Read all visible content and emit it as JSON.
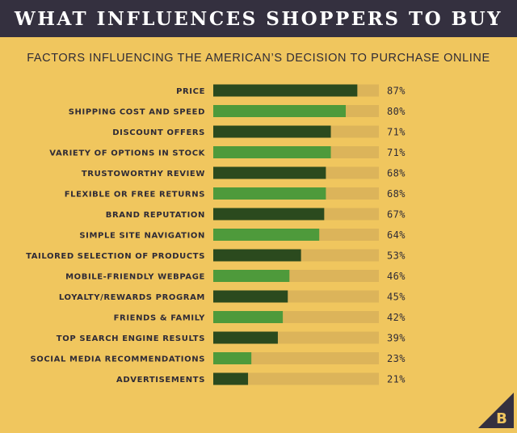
{
  "header": {
    "title": "WHAT INFLUENCES SHOPPERS TO BUY"
  },
  "subtitle": "FACTORS INFLUENCING THE AMERICAN’S DECISION TO PURCHASE ONLINE",
  "colors": {
    "background": "#f0c65e",
    "header": "#34303f",
    "bar_dark": "#2b4a1e",
    "bar_light": "#4e9a3b",
    "track": "#dcb45a",
    "text": "#2f2b36"
  },
  "logo": {
    "icon": "b-triangle-logo-icon"
  },
  "chart_data": {
    "type": "bar",
    "orientation": "horizontal",
    "title": "",
    "xlabel": "",
    "ylabel": "",
    "xlim": [
      0,
      100
    ],
    "value_suffix": "%",
    "categories": [
      "PRICE",
      "SHIPPING COST AND SPEED",
      "DISCOUNT OFFERS",
      "VARIETY OF OPTIONS IN STOCK",
      "TRUSTOWORTHY REVIEW",
      "FLEXIBLE OR FREE RETURNS",
      "BRAND REPUTATION",
      "SIMPLE SITE NAVIGATION",
      "TAILORED SELECTION OF PRODUCTS",
      "MOBILE-FRIENDLY WEBPAGE",
      "LOYALTY/REWARDS PROGRAM",
      "FRIENDS & FAMILY",
      "TOP SEARCH ENGINE RESULTS",
      "SOCIAL MEDIA RECOMMENDATIONS",
      "ADVERTISEMENTS"
    ],
    "values": [
      87,
      80,
      71,
      71,
      68,
      68,
      67,
      64,
      53,
      46,
      45,
      42,
      39,
      23,
      21
    ],
    "value_labels": [
      "87%",
      "80%",
      "71%",
      "71%",
      "68%",
      "68%",
      "67%",
      "64%",
      "53%",
      "46%",
      "45%",
      "42%",
      "39%",
      "23%",
      "21%"
    ],
    "grid": false,
    "legend": "none"
  }
}
